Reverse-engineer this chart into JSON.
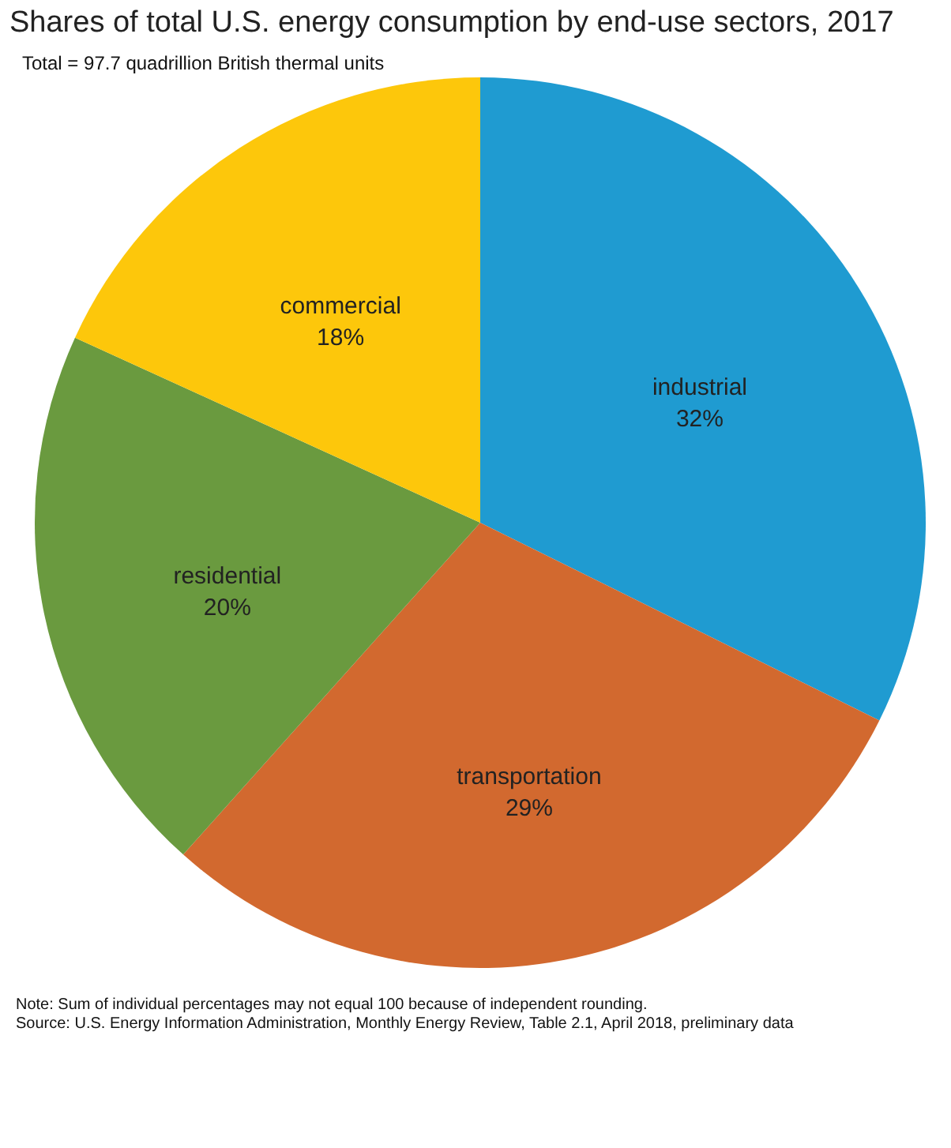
{
  "chart_data": {
    "type": "pie",
    "title": "Shares of total U.S. energy consumption by end-use sectors, 2017",
    "subtitle": "Total = 97.7 quadrillion British thermal units",
    "categories": [
      "industrial",
      "transportation",
      "residential",
      "commercial"
    ],
    "values": [
      32,
      29,
      20,
      18
    ],
    "value_labels": [
      "32%",
      "29%",
      "20%",
      "18%"
    ],
    "colors": [
      "#1f9bd1",
      "#d2692f",
      "#6a9a3f",
      "#fdc70b"
    ],
    "annotations": [
      "Note: Sum of individual percentages may not equal 100 because of independent rounding.",
      "Source: U.S. Energy Information Administration, Monthly Energy Review, Table 2.1, April 2018, preliminary data"
    ]
  }
}
